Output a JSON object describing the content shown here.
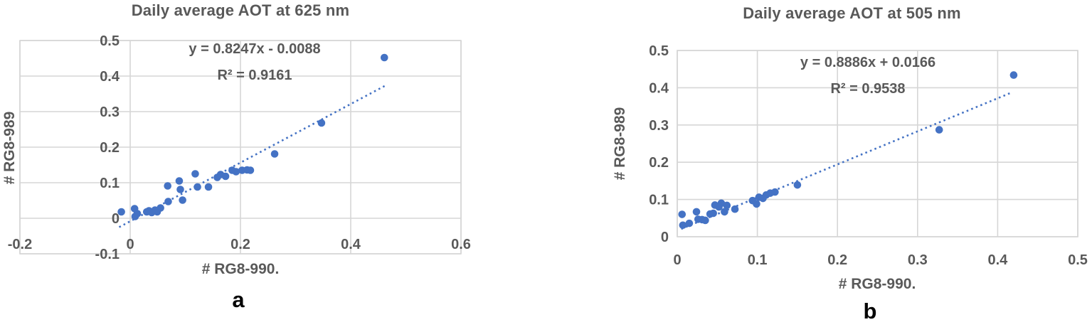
{
  "colors": {
    "marker": "#4472C4",
    "trendline": "#4472C4",
    "gridline": "#D6D6D6",
    "axis_text": "#595959",
    "sublabel_text": "#050505"
  },
  "chart_data": [
    {
      "type": "scatter",
      "title": "Daily average AOT at 625 nm",
      "equation": "y = 0.8247x - 0.0088",
      "r_squared": "R² = 0.9161",
      "xlabel": "# RG8-990.",
      "ylabel": "# RG8-989",
      "sublabel": "a",
      "xlim": [
        -0.2,
        0.6
      ],
      "ylim": [
        -0.1,
        0.5
      ],
      "x_ticks": [
        "-0.2",
        "0",
        "0.2",
        "0.4",
        "0.6"
      ],
      "y_ticks": [
        "0.5",
        "0.4",
        "0.3",
        "0.2",
        "0.1",
        "0",
        "-0.1"
      ],
      "grid": true,
      "legend": "none",
      "points": [
        [
          -0.016,
          0.018
        ],
        [
          0.008,
          0.027
        ],
        [
          0.009,
          0.005
        ],
        [
          0.013,
          0.013
        ],
        [
          0.03,
          0.018
        ],
        [
          0.034,
          0.021
        ],
        [
          0.039,
          0.016
        ],
        [
          0.045,
          0.023
        ],
        [
          0.049,
          0.018
        ],
        [
          0.055,
          0.029
        ],
        [
          0.069,
          0.047
        ],
        [
          0.068,
          0.091
        ],
        [
          0.089,
          0.105
        ],
        [
          0.091,
          0.081
        ],
        [
          0.095,
          0.051
        ],
        [
          0.118,
          0.125
        ],
        [
          0.122,
          0.088
        ],
        [
          0.142,
          0.088
        ],
        [
          0.158,
          0.115
        ],
        [
          0.164,
          0.123
        ],
        [
          0.173,
          0.118
        ],
        [
          0.185,
          0.135
        ],
        [
          0.192,
          0.131
        ],
        [
          0.203,
          0.135
        ],
        [
          0.212,
          0.136
        ],
        [
          0.218,
          0.135
        ],
        [
          0.262,
          0.181
        ],
        [
          0.347,
          0.268
        ],
        [
          0.461,
          0.452
        ]
      ],
      "trendline": {
        "style": "dotted",
        "x1": -0.02,
        "y1": -0.025,
        "x2": 0.465,
        "y2": 0.375
      }
    },
    {
      "type": "scatter",
      "title": "Daily average AOT at 505 nm",
      "equation": "y = 0.8886x + 0.0166",
      "r_squared": "R² = 0.9538",
      "xlabel": "# RG8-990.",
      "ylabel": "# RG8-989",
      "sublabel": "b",
      "xlim": [
        0,
        0.5
      ],
      "ylim": [
        0,
        0.5
      ],
      "x_ticks": [
        "0",
        "0.1",
        "0.2",
        "0.3",
        "0.4",
        "0.5"
      ],
      "y_ticks": [
        "0.5",
        "0.4",
        "0.3",
        "0.2",
        "0.1",
        "0"
      ],
      "grid": true,
      "legend": "none",
      "points": [
        [
          0.006,
          0.06
        ],
        [
          0.007,
          0.031
        ],
        [
          0.015,
          0.036
        ],
        [
          0.024,
          0.067
        ],
        [
          0.026,
          0.047
        ],
        [
          0.031,
          0.046
        ],
        [
          0.035,
          0.044
        ],
        [
          0.041,
          0.061
        ],
        [
          0.045,
          0.063
        ],
        [
          0.047,
          0.085
        ],
        [
          0.052,
          0.08
        ],
        [
          0.055,
          0.09
        ],
        [
          0.059,
          0.067
        ],
        [
          0.062,
          0.084
        ],
        [
          0.072,
          0.074
        ],
        [
          0.094,
          0.097
        ],
        [
          0.099,
          0.088
        ],
        [
          0.102,
          0.106
        ],
        [
          0.107,
          0.103
        ],
        [
          0.111,
          0.112
        ],
        [
          0.116,
          0.117
        ],
        [
          0.122,
          0.12
        ],
        [
          0.15,
          0.139
        ],
        [
          0.327,
          0.287
        ],
        [
          0.42,
          0.434
        ]
      ],
      "trendline": {
        "style": "dotted",
        "x1": 0.005,
        "y1": 0.021,
        "x2": 0.415,
        "y2": 0.385
      }
    }
  ]
}
